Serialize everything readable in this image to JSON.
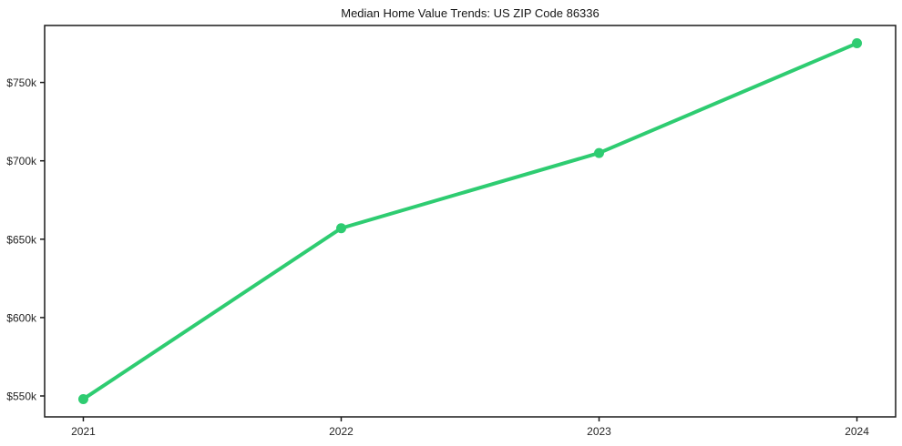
{
  "chart_data": {
    "type": "line",
    "title": "Median Home Value Trends: US ZIP Code 86336",
    "xlabel": "",
    "ylabel": "",
    "x": [
      2021,
      2022,
      2023,
      2024
    ],
    "x_tick_labels": [
      "2021",
      "2022",
      "2023",
      "2024"
    ],
    "values": [
      548000,
      657000,
      705000,
      775000
    ],
    "y_ticks": [
      550000,
      600000,
      650000,
      700000,
      750000
    ],
    "y_tick_labels": [
      "$550k",
      "$600k",
      "$650k",
      "$700k",
      "$750k"
    ],
    "xlim": [
      2020.85,
      2024.15
    ],
    "ylim": [
      536650,
      786350
    ],
    "grid": false,
    "legend": "none",
    "style": {
      "line_color": "#2ecc71",
      "marker": "circle",
      "marker_color": "#2ecc71",
      "line_width": 4,
      "marker_radius": 5.5,
      "axis_color": "#1a1a1a",
      "tick_label_color": "#262626",
      "title_color": "#141414",
      "background": "#ffffff"
    }
  }
}
